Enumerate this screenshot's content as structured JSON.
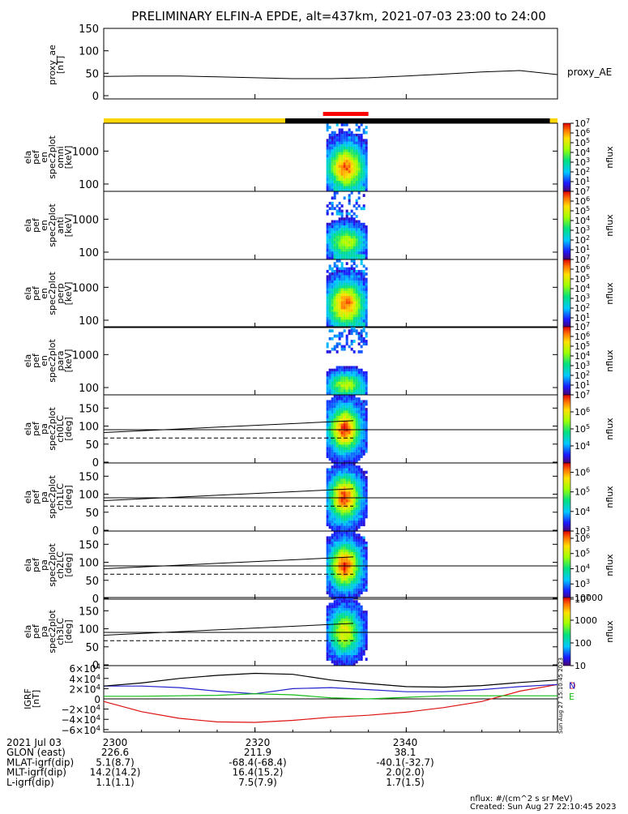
{
  "title": "PRELIMINARY ELFIN-A EPDE, alt=437km, 2021-07-03 23:00 to 24:00",
  "footer": {
    "units": "nflux: #/(cm^2 s sr MeV)",
    "created": "Created: Sun Aug 27 22:10:45 2023",
    "vertical_stamp": "Sun Aug 27 15:10:45 2023"
  },
  "colors": {
    "status_bar_yellow": "#ffd700",
    "status_bar_black": "#000000",
    "science_marker_red": "#ff0000",
    "trace_black": "#000000",
    "bx_red": "#dd1111",
    "by_blue": "#2222cc",
    "bz_green": "#11bb11"
  },
  "time_axis": {
    "start": "23:00",
    "end": "24:00",
    "range_minutes": [
      0,
      60
    ],
    "ticks": [
      {
        "minute": 0,
        "label": "2300"
      },
      {
        "minute": 20,
        "label": "2320"
      },
      {
        "minute": 40,
        "label": "2340"
      }
    ]
  },
  "orbit_table": {
    "rows": [
      {
        "label": "2021 Jul 03",
        "values": [
          "2300",
          "2320",
          "2340"
        ]
      },
      {
        "label": "GLON (east)",
        "values": [
          "226.6",
          "211.9",
          "38.1"
        ]
      },
      {
        "label": "MLAT-igrf(dip)",
        "values": [
          "5.1(8.7)",
          "-68.4(-68.4)",
          "-40.1(-32.7)"
        ]
      },
      {
        "label": "MLT-igrf(dip)",
        "values": [
          "14.2(14.2)",
          "16.4(15.2)",
          "2.0(2.0)"
        ]
      },
      {
        "label": "L-igrf(dip)",
        "values": [
          "1.1(1.1)",
          "7.5(7.9)",
          "1.7(1.5)"
        ]
      }
    ]
  },
  "status_bar": {
    "segments": [
      {
        "from_min": 0,
        "to_min": 24,
        "color": "yellow"
      },
      {
        "from_min": 24,
        "to_min": 59,
        "color": "black"
      },
      {
        "from_min": 59,
        "to_min": 60,
        "color": "yellow"
      }
    ],
    "science_zone": {
      "from_min": 29,
      "to_min": 35
    }
  },
  "chart_data": [
    {
      "id": "proxy_ae",
      "type": "line",
      "ylabel": "proxy_ae [nT]",
      "legend": "proxy_AE",
      "ylim": [
        0,
        150
      ],
      "yticks": [
        "0",
        "50",
        "100",
        "150"
      ],
      "x_minutes": [
        0,
        5,
        10,
        15,
        20,
        25,
        30,
        35,
        40,
        45,
        50,
        55,
        60
      ],
      "values": [
        43,
        44,
        44,
        42,
        40,
        38,
        38,
        40,
        44,
        48,
        53,
        56,
        47
      ]
    },
    {
      "id": "omni",
      "type": "heatmap",
      "ylabel": "ela pef en spec2plot omni [keV]",
      "scale": "log",
      "ylim": [
        60,
        7000
      ],
      "yticks": [
        "100",
        "1000"
      ],
      "xrange_min": [
        29,
        35
      ],
      "peak_energy_keV": 300,
      "colorbar": {
        "label": "nflux",
        "range": [
          1,
          10000000
        ],
        "ticks": [
          "10^1",
          "10^2",
          "10^3",
          "10^4",
          "10^5",
          "10^6",
          "10^7"
        ]
      }
    },
    {
      "id": "anti",
      "type": "heatmap",
      "ylabel": "ela pef en spec2plot anti [keV]",
      "scale": "log",
      "ylim": [
        60,
        7000
      ],
      "yticks": [
        "100",
        "1000"
      ],
      "xrange_min": [
        29,
        35
      ],
      "peak_energy_keV": 200,
      "colorbar": {
        "label": "nflux",
        "range": [
          1,
          10000000
        ],
        "ticks": [
          "10^1",
          "10^2",
          "10^3",
          "10^4",
          "10^5",
          "10^6",
          "10^7"
        ]
      }
    },
    {
      "id": "perp",
      "type": "heatmap",
      "ylabel": "ela pef en spec2plot perp [keV]",
      "scale": "log",
      "ylim": [
        60,
        7000
      ],
      "yticks": [
        "100",
        "1000"
      ],
      "xrange_min": [
        29,
        35
      ],
      "peak_energy_keV": 300,
      "colorbar": {
        "label": "nflux",
        "range": [
          1,
          10000000
        ],
        "ticks": [
          "10^1",
          "10^2",
          "10^3",
          "10^4",
          "10^5",
          "10^6",
          "10^7"
        ]
      }
    },
    {
      "id": "para",
      "type": "heatmap",
      "ylabel": "ela pef en spec2plot para [keV]",
      "scale": "log",
      "ylim": [
        60,
        7000
      ],
      "yticks": [
        "100",
        "1000"
      ],
      "xrange_min": [
        29,
        35
      ],
      "peak_energy_keV": 120,
      "colorbar": {
        "label": "nflux",
        "range": [
          1,
          10000000
        ],
        "ticks": [
          "10^1",
          "10^2",
          "10^3",
          "10^4",
          "10^5",
          "10^6",
          "10^7"
        ]
      }
    },
    {
      "id": "ch0LC",
      "type": "heatmap",
      "ylabel": "ela pef pa spec2plot ch0LC [deg]",
      "ylim": [
        0,
        180
      ],
      "yticks": [
        "0",
        "50",
        "100",
        "150"
      ],
      "xrange_min": [
        29,
        35
      ],
      "center_deg": 90,
      "lines": {
        "solid_start": 82,
        "solid_end": 115,
        "dashed": 67,
        "horizontal": 90
      },
      "colorbar": {
        "label": "nflux",
        "range": [
          1000,
          10000000
        ],
        "ticks": [
          "10^4",
          "10^5",
          "10^6",
          "10^7"
        ]
      }
    },
    {
      "id": "ch1LC",
      "type": "heatmap",
      "ylabel": "ela pef pa spec2plot ch1LC [deg]",
      "ylim": [
        0,
        180
      ],
      "yticks": [
        "0",
        "50",
        "100",
        "150"
      ],
      "xrange_min": [
        29,
        35
      ],
      "center_deg": 90,
      "lines": {
        "solid_start": 82,
        "solid_end": 115,
        "dashed": 67,
        "horizontal": 90
      },
      "colorbar": {
        "label": "nflux",
        "range": [
          1000,
          3000000
        ],
        "ticks": [
          "10^3",
          "10^4",
          "10^5",
          "10^6"
        ]
      }
    },
    {
      "id": "ch2LC",
      "type": "heatmap",
      "ylabel": "ela pef pa spec2plot ch2LC [deg]",
      "ylim": [
        0,
        180
      ],
      "yticks": [
        "0",
        "50",
        "100",
        "150"
      ],
      "xrange_min": [
        29,
        35
      ],
      "center_deg": 90,
      "lines": {
        "solid_start": 82,
        "solid_end": 115,
        "dashed": 67,
        "horizontal": 90
      },
      "colorbar": {
        "label": "nflux",
        "range": [
          100,
          3000000
        ],
        "ticks": [
          "10^2",
          "10^3",
          "10^4",
          "10^5",
          "10^6"
        ]
      }
    },
    {
      "id": "ch3LC",
      "type": "heatmap",
      "ylabel": "ela pef pa spec2plot ch3LC [deg]",
      "ylim": [
        0,
        180
      ],
      "yticks": [
        "0",
        "50",
        "100",
        "150"
      ],
      "xrange_min": [
        29,
        35
      ],
      "center_deg": 90,
      "lines": {
        "solid_start": 82,
        "solid_end": 115,
        "dashed": 67,
        "horizontal": 90
      },
      "colorbar": {
        "label": "nflux",
        "range": [
          10,
          10000
        ],
        "ticks": [
          "10",
          "100",
          "1000",
          "10000"
        ]
      }
    },
    {
      "id": "igrf",
      "type": "line",
      "ylabel": "IGRF [nT]",
      "ylim": [
        -65000,
        65000
      ],
      "yticks": [
        "6×10^4",
        "4×10^4",
        "2×10^4",
        "0",
        "−2×10^4",
        "−4×10^4",
        "−6×10^4"
      ],
      "x_minutes": [
        0,
        5,
        10,
        15,
        20,
        25,
        30,
        35,
        40,
        45,
        50,
        55,
        60
      ],
      "series": [
        {
          "name": "D",
          "color": "bx_red",
          "values": [
            -5000,
            -25000,
            -38000,
            -45000,
            -46000,
            -42000,
            -36000,
            -32000,
            -26000,
            -17000,
            -5000,
            15000,
            28000
          ]
        },
        {
          "name": "N",
          "color": "by_blue",
          "values": [
            25000,
            25000,
            22000,
            15000,
            10000,
            20000,
            22000,
            18000,
            14000,
            14000,
            18000,
            24000,
            28000
          ]
        },
        {
          "name": "E",
          "color": "bz_green",
          "values": [
            5000,
            5000,
            6000,
            7000,
            10000,
            8000,
            2000,
            0,
            3000,
            6000,
            6000,
            6000,
            6000
          ]
        },
        {
          "name": "",
          "color": "trace_black",
          "values": [
            25000,
            31000,
            40000,
            46000,
            50000,
            48000,
            37000,
            30000,
            24000,
            23000,
            26000,
            32000,
            37000
          ]
        }
      ]
    }
  ]
}
